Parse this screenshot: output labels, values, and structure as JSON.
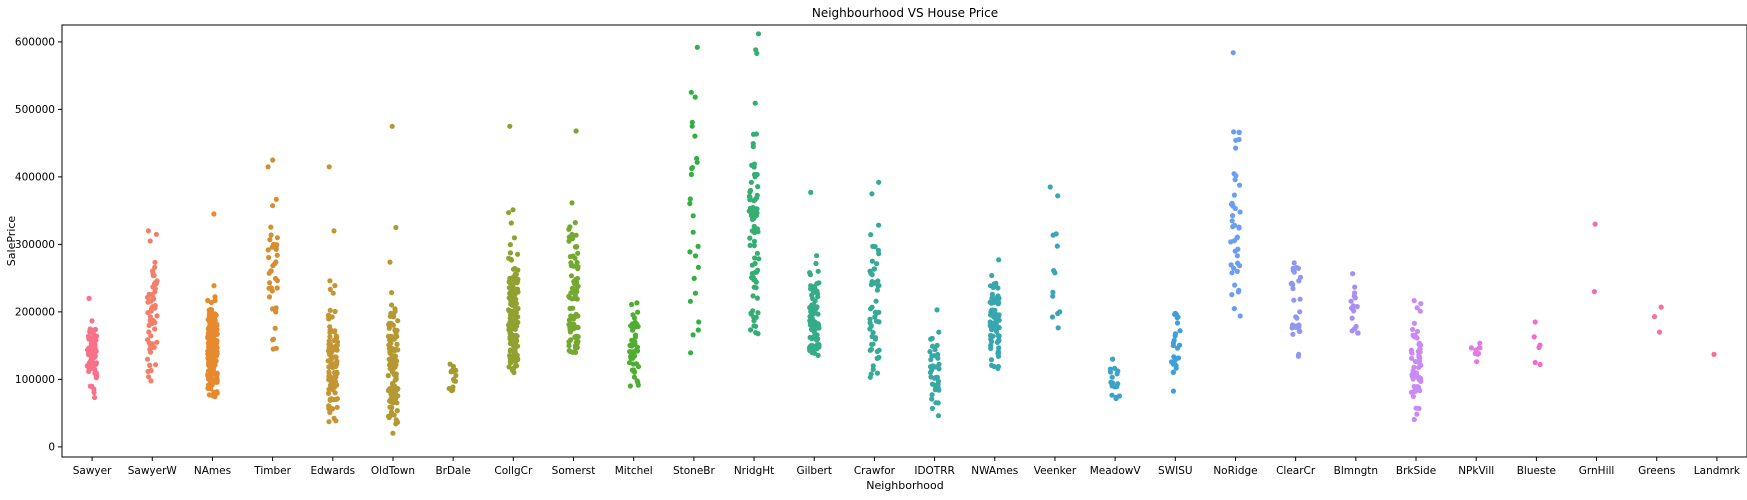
{
  "chart_data": {
    "type": "scatter",
    "subtype": "strip",
    "title": "Neighbourhood VS House Price",
    "xlabel": "Neighborhood",
    "ylabel": "SalePrice",
    "ylim": [
      -15000,
      625000
    ],
    "yticks": [
      0,
      100000,
      200000,
      300000,
      400000,
      500000,
      600000
    ],
    "grid": false,
    "legend": "none",
    "categories": [
      {
        "name": "Sawyer",
        "color": "#f77189",
        "n": 74,
        "mean": 136000,
        "sd": 26000,
        "min": 62000,
        "max": 190000,
        "extra": [
          220000
        ]
      },
      {
        "name": "SawyerW",
        "color": "#f37f68",
        "n": 59,
        "mean": 186000,
        "sd": 52000,
        "min": 85000,
        "max": 275000,
        "extra": [
          320000,
          315000,
          305000
        ]
      },
      {
        "name": "NAmes",
        "color": "#e7892e",
        "n": 225,
        "mean": 146000,
        "sd": 33000,
        "min": 70000,
        "max": 280000,
        "extra": [
          345000
        ]
      },
      {
        "name": "Timber",
        "color": "#d58e32",
        "n": 38,
        "mean": 242000,
        "sd": 63000,
        "min": 137000,
        "max": 380000,
        "extra": [
          425000,
          415000
        ]
      },
      {
        "name": "Edwards",
        "color": "#c49532",
        "n": 100,
        "mean": 128000,
        "sd": 43000,
        "min": 35000,
        "max": 290000,
        "extra": [
          415000,
          320000
        ]
      },
      {
        "name": "OldTown",
        "color": "#b49932",
        "n": 113,
        "mean": 128000,
        "sd": 52000,
        "min": 12000,
        "max": 300000,
        "extra": [
          475000,
          325000
        ]
      },
      {
        "name": "BrDale",
        "color": "#a49c31",
        "n": 16,
        "mean": 104000,
        "sd": 14000,
        "min": 83000,
        "max": 125000,
        "extra": []
      },
      {
        "name": "CollgCr",
        "color": "#91a131",
        "n": 150,
        "mean": 197000,
        "sd": 51000,
        "min": 110000,
        "max": 395000,
        "extra": [
          475000
        ]
      },
      {
        "name": "Somerst",
        "color": "#74a831",
        "n": 86,
        "mean": 225000,
        "sd": 56000,
        "min": 140000,
        "max": 375000,
        "extra": [
          468000
        ]
      },
      {
        "name": "Mitchel",
        "color": "#4fae32",
        "n": 49,
        "mean": 156000,
        "sd": 37000,
        "min": 80000,
        "max": 300000,
        "extra": []
      },
      {
        "name": "StoneBr",
        "color": "#32b143",
        "n": 25,
        "mean": 310000,
        "sd": 112000,
        "min": 130000,
        "max": 560000,
        "extra": [
          592000
        ]
      },
      {
        "name": "NridgHt",
        "color": "#34ae71",
        "n": 77,
        "mean": 316000,
        "sd": 96000,
        "min": 155000,
        "max": 590000,
        "extra": [
          612000,
          583000
        ]
      },
      {
        "name": "Gilbert",
        "color": "#35ac87",
        "n": 79,
        "mean": 193000,
        "sd": 35000,
        "min": 135000,
        "max": 320000,
        "extra": [
          377000
        ]
      },
      {
        "name": "Crawfor",
        "color": "#36aa97",
        "n": 51,
        "mean": 210000,
        "sd": 68000,
        "min": 90000,
        "max": 340000,
        "extra": [
          392000,
          375000
        ]
      },
      {
        "name": "IDOTRR",
        "color": "#37a8a3",
        "n": 37,
        "mean": 100000,
        "sd": 33000,
        "min": 13000,
        "max": 170000,
        "extra": [
          203000
        ]
      },
      {
        "name": "NWAmes",
        "color": "#38a6ae",
        "n": 73,
        "mean": 189000,
        "sd": 37000,
        "min": 113000,
        "max": 305000,
        "extra": []
      },
      {
        "name": "Veenker",
        "color": "#39a4ba",
        "n": 11,
        "mean": 238000,
        "sd": 72000,
        "min": 150000,
        "max": 335000,
        "extra": [
          385000,
          372000
        ]
      },
      {
        "name": "MeadowV",
        "color": "#3ba2c8",
        "n": 17,
        "mean": 98000,
        "sd": 23000,
        "min": 70000,
        "max": 152000,
        "extra": []
      },
      {
        "name": "SWISU",
        "color": "#3e9fdb",
        "n": 25,
        "mean": 142000,
        "sd": 32000,
        "min": 60000,
        "max": 200000,
        "extra": []
      },
      {
        "name": "NoRidge",
        "color": "#6b9ef0",
        "n": 41,
        "mean": 335000,
        "sd": 80000,
        "min": 190000,
        "max": 470000,
        "extra": [
          584000
        ]
      },
      {
        "name": "ClearCr",
        "color": "#8f97f0",
        "n": 28,
        "mean": 212000,
        "sd": 50000,
        "min": 130000,
        "max": 330000,
        "extra": []
      },
      {
        "name": "Blmngtn",
        "color": "#a68ef3",
        "n": 17,
        "mean": 194000,
        "sd": 30000,
        "min": 160000,
        "max": 265000,
        "extra": []
      },
      {
        "name": "BrkSide",
        "color": "#ca8af3",
        "n": 58,
        "mean": 124000,
        "sd": 41000,
        "min": 40000,
        "max": 225000,
        "extra": []
      },
      {
        "name": "NPkVill",
        "color": "#e279e8",
        "n": 9,
        "mean": 142000,
        "sd": 9000,
        "min": 120000,
        "max": 155000,
        "extra": []
      },
      {
        "name": "Blueste",
        "color": "#ee6ccc",
        "n": 2,
        "mean": 137000,
        "sd": 19000,
        "min": 124000,
        "max": 151000,
        "extra": [
          185000,
          163000,
          125000,
          122000
        ]
      },
      {
        "name": "GrnHill",
        "color": "#f16eb5",
        "n": 0,
        "mean": 280000,
        "sd": 0,
        "min": 230000,
        "max": 330000,
        "extra": [
          330000,
          230000
        ]
      },
      {
        "name": "Greens",
        "color": "#f471a2",
        "n": 0,
        "mean": 198000,
        "sd": 0,
        "min": 170000,
        "max": 207000,
        "extra": [
          207000,
          193000,
          170000
        ]
      },
      {
        "name": "Landmrk",
        "color": "#f77192",
        "n": 0,
        "mean": 137000,
        "sd": 0,
        "min": 137000,
        "max": 137000,
        "extra": [
          137000
        ]
      }
    ]
  }
}
